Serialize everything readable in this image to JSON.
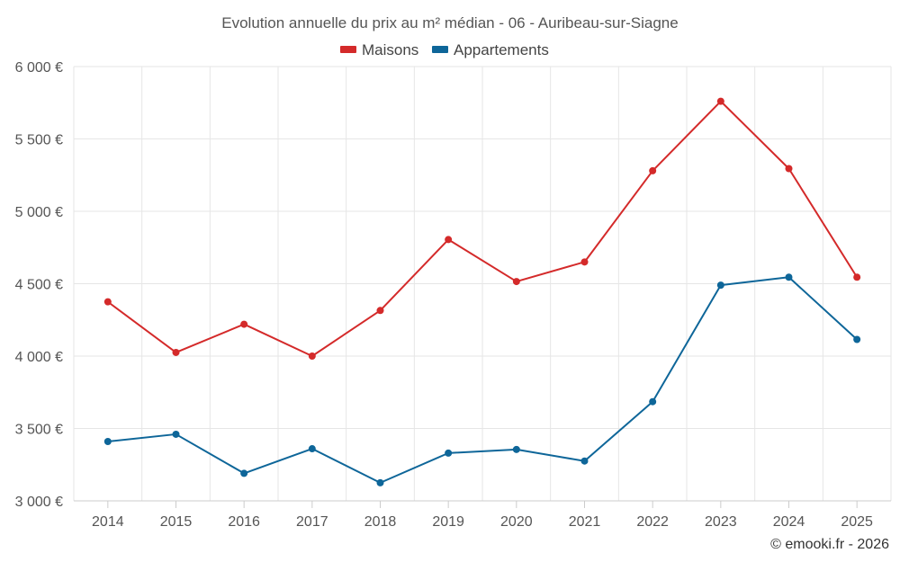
{
  "chart_data": {
    "type": "line",
    "title": "Evolution annuelle du prix au m² médian - 06 - Auribeau-sur-Siagne",
    "categories": [
      "2014",
      "2015",
      "2016",
      "2017",
      "2018",
      "2019",
      "2020",
      "2021",
      "2022",
      "2023",
      "2024",
      "2025"
    ],
    "series": [
      {
        "name": "Maisons",
        "color": "#d42a2a",
        "values": [
          4375,
          4025,
          4220,
          4000,
          4315,
          4805,
          4515,
          4650,
          5280,
          5760,
          5295,
          4545
        ]
      },
      {
        "name": "Appartements",
        "color": "#0e6699",
        "values": [
          3410,
          3460,
          3190,
          3360,
          3125,
          3330,
          3355,
          3275,
          3685,
          4490,
          4545,
          4115
        ]
      }
    ],
    "ylim": [
      3000,
      6000
    ],
    "yticks": [
      3000,
      3500,
      4000,
      4500,
      5000,
      5500,
      6000
    ],
    "ytick_labels": [
      "3 000 €",
      "3 500 €",
      "4 000 €",
      "4 500 €",
      "5 000 €",
      "5 500 €",
      "6 000 €"
    ],
    "grid": true,
    "legend_position": "top-center",
    "credit": "© emooki.fr - 2026"
  }
}
